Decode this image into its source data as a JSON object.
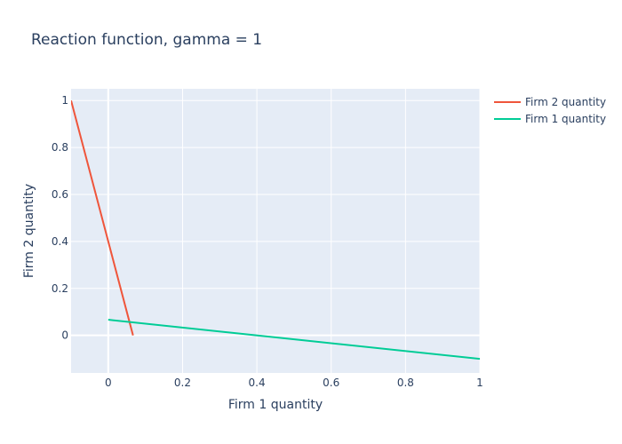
{
  "chart_data": {
    "type": "line",
    "title": "Reaction function, gamma = 1",
    "xlabel": "Firm 1 quantity",
    "ylabel": "Firm 2 quantity",
    "xlim": [
      -0.1,
      1
    ],
    "ylim": [
      -0.16,
      1.05
    ],
    "xticks": [
      0,
      0.2,
      0.4,
      0.6,
      0.8,
      1
    ],
    "xtick_labels": [
      "0",
      "0.2",
      "0.4",
      "0.6",
      "0.8",
      "1"
    ],
    "yticks": [
      0,
      0.2,
      0.4,
      0.6,
      0.8,
      1
    ],
    "ytick_labels": [
      "0",
      "0.2",
      "0.4",
      "0.6",
      "0.8",
      "1"
    ],
    "grid": true,
    "legend_position": "top-right outside",
    "series": [
      {
        "name": "Firm 2 quantity",
        "color": "#ef553b",
        "x": [
          -0.1,
          0.0667
        ],
        "y": [
          1.0,
          0.0
        ]
      },
      {
        "name": "Firm 1 quantity",
        "color": "#00cc96",
        "x": [
          0.0,
          1.0
        ],
        "y": [
          0.0667,
          -0.1
        ]
      }
    ]
  },
  "colors": {
    "plot_background": "#e5ecf6",
    "grid": "#ffffff",
    "text": "#2a3f5f"
  }
}
